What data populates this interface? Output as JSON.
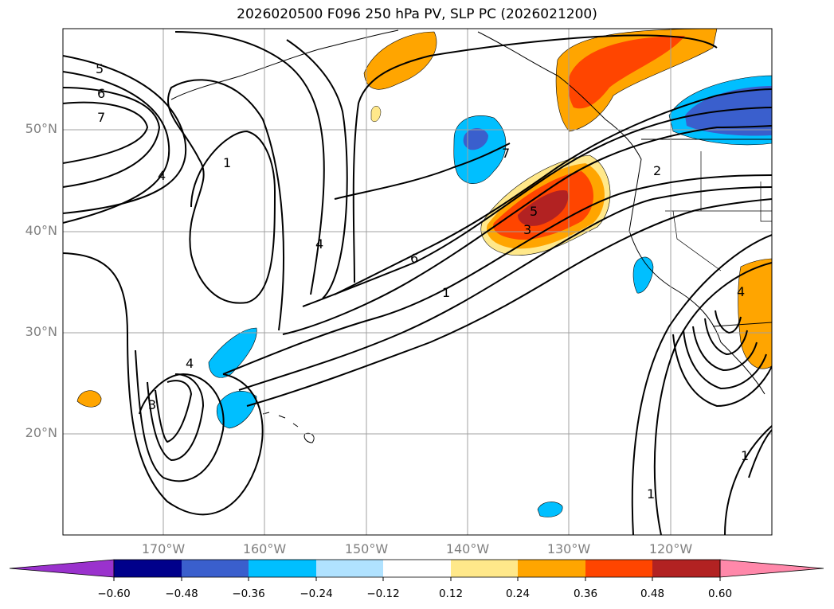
{
  "title": "2026020500 F096 250 hPa PV, SLP PC (2026021200)",
  "lat_labels": [
    "50°N",
    "40°N",
    "30°N",
    "20°N"
  ],
  "lon_labels": [
    "170°W",
    "160°W",
    "150°W",
    "140°W",
    "130°W",
    "120°W"
  ],
  "contour_labels": [
    "5",
    "6",
    "7",
    "4",
    "1",
    "4",
    "4",
    "3",
    "7",
    "6",
    "1",
    "5",
    "3",
    "2",
    "4",
    "1",
    "1"
  ],
  "colorbar": {
    "ticks": [
      "−0.60",
      "−0.48",
      "−0.36",
      "−0.24",
      "−0.12",
      "0.12",
      "0.24",
      "0.36",
      "0.48",
      "0.60"
    ],
    "colors": [
      "#9a32cd",
      "#00008b",
      "#3a5fcd",
      "#00bfff",
      "#b0e2ff",
      "#ffffff",
      "#ffe88a",
      "#ffa500",
      "#ff4500",
      "#b22222",
      "#ff88aa"
    ]
  }
}
